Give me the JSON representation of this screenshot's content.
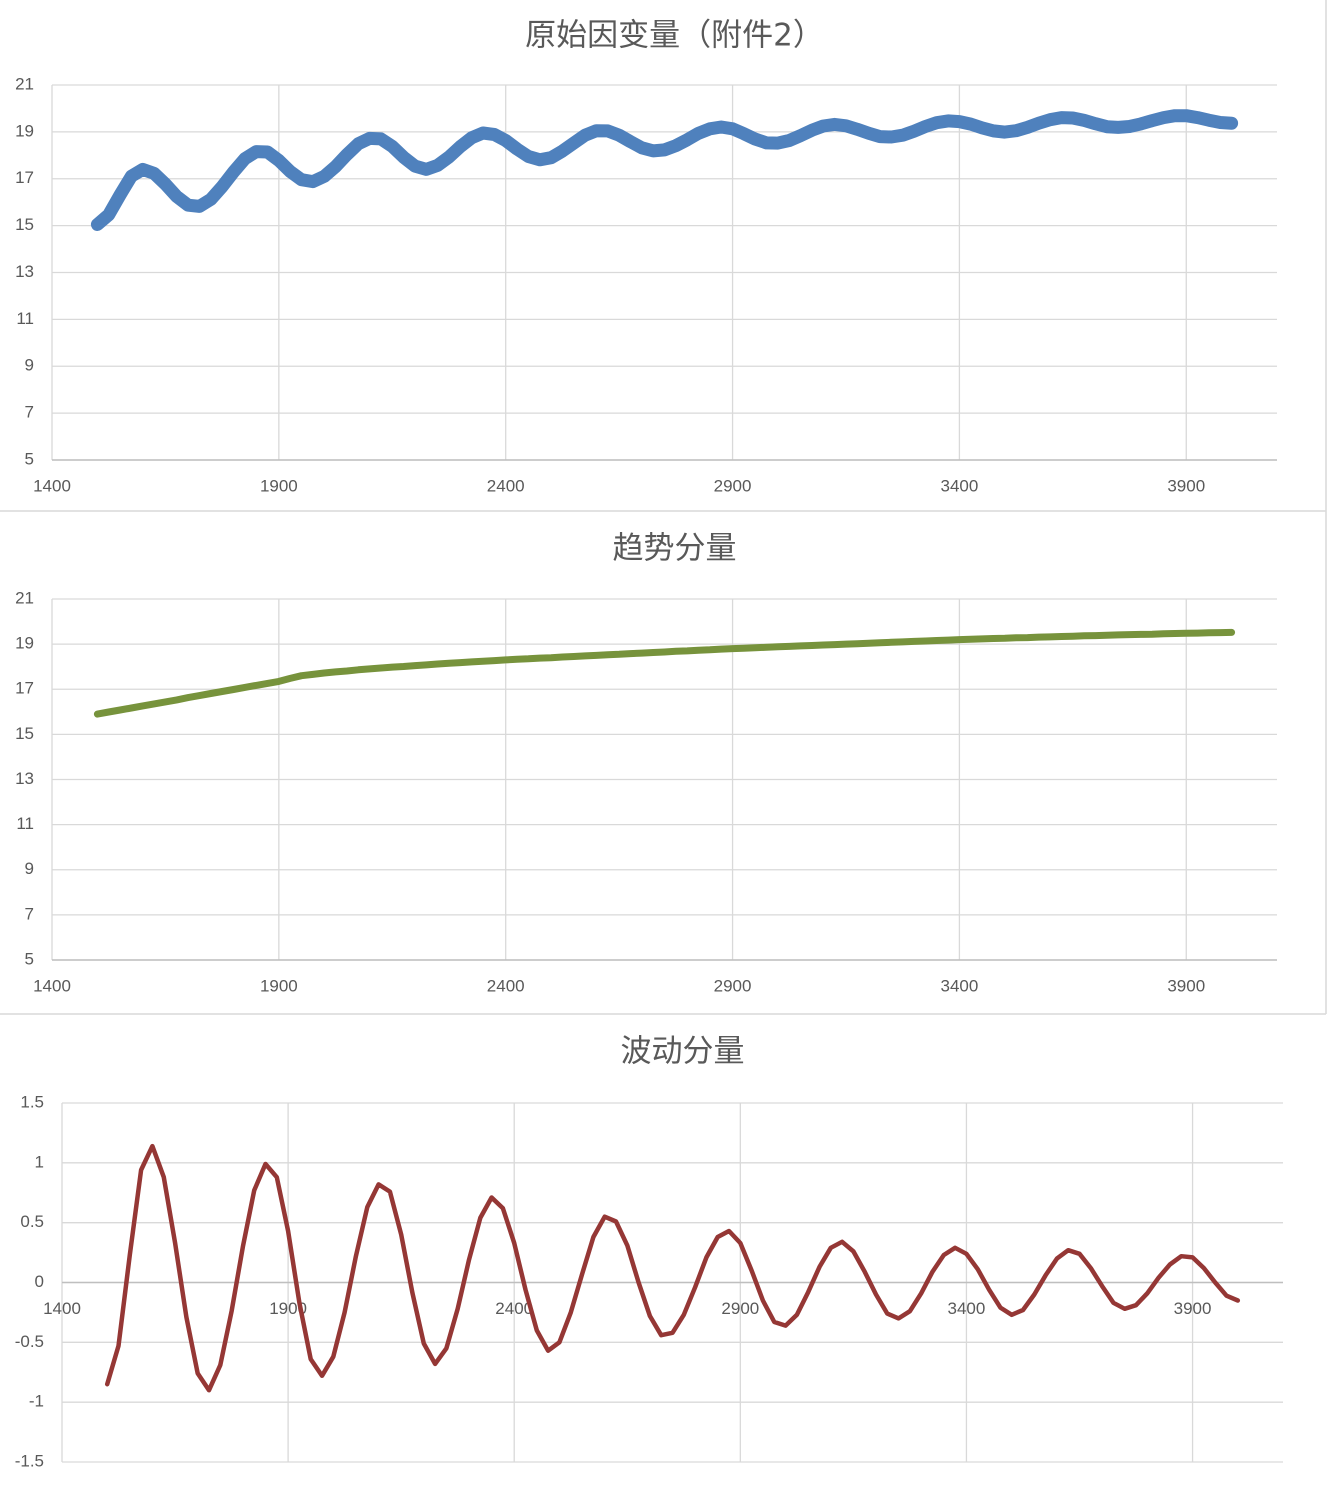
{
  "chart_data": [
    {
      "type": "line",
      "title": "原始因变量（附件2）",
      "color": "#4f81bd",
      "grid": true,
      "xlim": [
        1400,
        4100
      ],
      "xticks": [
        1400,
        1900,
        2400,
        2900,
        3400,
        3900
      ],
      "ylim": [
        5,
        21
      ],
      "yticks": [
        5,
        7,
        9,
        11,
        13,
        15,
        17,
        19,
        21
      ],
      "x": [
        1500,
        1525,
        1550,
        1575,
        1600,
        1625,
        1650,
        1675,
        1700,
        1725,
        1750,
        1775,
        1800,
        1825,
        1850,
        1875,
        1900,
        1925,
        1950,
        1975,
        2000,
        2025,
        2050,
        2075,
        2100,
        2125,
        2150,
        2175,
        2200,
        2225,
        2250,
        2275,
        2300,
        2325,
        2350,
        2375,
        2400,
        2425,
        2450,
        2475,
        2500,
        2525,
        2550,
        2575,
        2600,
        2625,
        2650,
        2675,
        2700,
        2725,
        2750,
        2775,
        2800,
        2825,
        2850,
        2875,
        2900,
        2925,
        2950,
        2975,
        3000,
        3025,
        3050,
        3075,
        3100,
        3125,
        3150,
        3175,
        3200,
        3225,
        3250,
        3275,
        3300,
        3325,
        3350,
        3375,
        3400,
        3425,
        3450,
        3475,
        3500,
        3525,
        3550,
        3575,
        3600,
        3625,
        3650,
        3675,
        3700,
        3725,
        3750,
        3775,
        3800,
        3825,
        3850,
        3875,
        3900,
        3925,
        3950,
        3975,
        4000
      ],
      "values": [
        15.05,
        15.46,
        16.31,
        17.11,
        17.4,
        17.23,
        16.77,
        16.24,
        15.87,
        15.82,
        16.12,
        16.66,
        17.29,
        17.85,
        18.16,
        18.14,
        17.78,
        17.31,
        16.96,
        16.88,
        17.1,
        17.52,
        18.03,
        18.49,
        18.72,
        18.7,
        18.38,
        17.92,
        17.54,
        17.4,
        17.57,
        17.93,
        18.37,
        18.75,
        18.95,
        18.89,
        18.63,
        18.27,
        17.95,
        17.81,
        17.9,
        18.18,
        18.52,
        18.86,
        19.05,
        19.04,
        18.86,
        18.58,
        18.32,
        18.19,
        18.23,
        18.41,
        18.66,
        18.94,
        19.13,
        19.21,
        19.13,
        18.92,
        18.69,
        18.53,
        18.52,
        18.63,
        18.84,
        19.07,
        19.25,
        19.32,
        19.26,
        19.11,
        18.94,
        18.8,
        18.78,
        18.86,
        19.03,
        19.23,
        19.39,
        19.47,
        19.44,
        19.33,
        19.17,
        19.04,
        18.99,
        19.05,
        19.19,
        19.37,
        19.52,
        19.61,
        19.59,
        19.49,
        19.35,
        19.22,
        19.19,
        19.23,
        19.34,
        19.48,
        19.61,
        19.69,
        19.69,
        19.61,
        19.5,
        19.4,
        19.37
      ]
    },
    {
      "type": "line",
      "title": "趋势分量",
      "color": "#77933c",
      "grid": true,
      "xlim": [
        1400,
        4100
      ],
      "xticks": [
        1400,
        1900,
        2400,
        2900,
        3400,
        3900
      ],
      "ylim": [
        5,
        21
      ],
      "yticks": [
        5,
        7,
        9,
        11,
        13,
        15,
        17,
        19,
        21
      ],
      "x": [
        1500,
        1525,
        1550,
        1575,
        1600,
        1625,
        1650,
        1675,
        1700,
        1725,
        1750,
        1775,
        1800,
        1825,
        1850,
        1875,
        1900,
        1925,
        1950,
        1975,
        2000,
        2025,
        2050,
        2075,
        2100,
        2125,
        2150,
        2175,
        2200,
        2225,
        2250,
        2275,
        2300,
        2325,
        2350,
        2375,
        2400,
        2425,
        2450,
        2475,
        2500,
        2525,
        2550,
        2575,
        2600,
        2625,
        2650,
        2675,
        2700,
        2725,
        2750,
        2775,
        2800,
        2825,
        2850,
        2875,
        2900,
        2925,
        2950,
        2975,
        3000,
        3025,
        3050,
        3075,
        3100,
        3125,
        3150,
        3175,
        3200,
        3225,
        3250,
        3275,
        3300,
        3325,
        3350,
        3375,
        3400,
        3425,
        3450,
        3475,
        3500,
        3525,
        3550,
        3575,
        3600,
        3625,
        3650,
        3675,
        3700,
        3725,
        3750,
        3775,
        3800,
        3825,
        3850,
        3875,
        3900,
        3925,
        3950,
        3975,
        4000
      ],
      "values": [
        15.9,
        15.99,
        16.08,
        16.17,
        16.26,
        16.35,
        16.44,
        16.53,
        16.63,
        16.72,
        16.81,
        16.9,
        16.99,
        17.08,
        17.17,
        17.26,
        17.35,
        17.48,
        17.6,
        17.66,
        17.72,
        17.77,
        17.81,
        17.86,
        17.9,
        17.94,
        17.98,
        18.01,
        18.05,
        18.08,
        18.12,
        18.15,
        18.18,
        18.21,
        18.24,
        18.27,
        18.3,
        18.33,
        18.35,
        18.38,
        18.4,
        18.43,
        18.45,
        18.48,
        18.5,
        18.53,
        18.55,
        18.58,
        18.6,
        18.63,
        18.65,
        18.68,
        18.7,
        18.73,
        18.75,
        18.78,
        18.8,
        18.82,
        18.84,
        18.86,
        18.88,
        18.9,
        18.92,
        18.94,
        18.96,
        18.98,
        19.0,
        19.02,
        19.04,
        19.06,
        19.08,
        19.1,
        19.12,
        19.14,
        19.16,
        19.18,
        19.2,
        19.22,
        19.23,
        19.25,
        19.26,
        19.28,
        19.29,
        19.31,
        19.32,
        19.34,
        19.35,
        19.37,
        19.38,
        19.39,
        19.41,
        19.42,
        19.43,
        19.44,
        19.46,
        19.47,
        19.48,
        19.49,
        19.5,
        19.51,
        19.52
      ]
    },
    {
      "type": "line",
      "title": "波动分量",
      "color": "#953735",
      "grid": true,
      "xlim": [
        1400,
        4100
      ],
      "xticks": [
        1400,
        1900,
        2400,
        2900,
        3400,
        3900
      ],
      "ylim": [
        -1.5,
        1.5
      ],
      "yticks": [
        -1.5,
        -1,
        -0.5,
        0,
        0.5,
        1,
        1.5
      ],
      "x": [
        1500,
        1525,
        1550,
        1575,
        1600,
        1625,
        1650,
        1675,
        1700,
        1725,
        1750,
        1775,
        1800,
        1825,
        1850,
        1875,
        1900,
        1925,
        1950,
        1975,
        2000,
        2025,
        2050,
        2075,
        2100,
        2125,
        2150,
        2175,
        2200,
        2225,
        2250,
        2275,
        2300,
        2325,
        2350,
        2375,
        2400,
        2425,
        2450,
        2475,
        2500,
        2525,
        2550,
        2575,
        2600,
        2625,
        2650,
        2675,
        2700,
        2725,
        2750,
        2775,
        2800,
        2825,
        2850,
        2875,
        2900,
        2925,
        2950,
        2975,
        3000,
        3025,
        3050,
        3075,
        3100,
        3125,
        3150,
        3175,
        3200,
        3225,
        3250,
        3275,
        3300,
        3325,
        3350,
        3375,
        3400,
        3425,
        3450,
        3475,
        3500,
        3525,
        3550,
        3575,
        3600,
        3625,
        3650,
        3675,
        3700,
        3725,
        3750,
        3775,
        3800,
        3825,
        3850,
        3875,
        3900,
        3925,
        3950,
        3975,
        4000
      ],
      "values": [
        -0.85,
        -0.53,
        0.23,
        0.94,
        1.14,
        0.88,
        0.33,
        -0.29,
        -0.76,
        -0.9,
        -0.69,
        -0.24,
        0.3,
        0.77,
        0.99,
        0.88,
        0.43,
        -0.17,
        -0.64,
        -0.78,
        -0.62,
        -0.25,
        0.22,
        0.63,
        0.82,
        0.76,
        0.4,
        -0.09,
        -0.51,
        -0.68,
        -0.55,
        -0.22,
        0.19,
        0.54,
        0.71,
        0.62,
        0.33,
        -0.06,
        -0.4,
        -0.57,
        -0.5,
        -0.25,
        0.07,
        0.38,
        0.55,
        0.51,
        0.31,
        0.0,
        -0.28,
        -0.44,
        -0.42,
        -0.27,
        -0.04,
        0.21,
        0.38,
        0.43,
        0.33,
        0.1,
        -0.15,
        -0.33,
        -0.36,
        -0.27,
        -0.08,
        0.13,
        0.29,
        0.34,
        0.26,
        0.09,
        -0.1,
        -0.26,
        -0.3,
        -0.24,
        -0.09,
        0.09,
        0.23,
        0.29,
        0.24,
        0.11,
        -0.06,
        -0.21,
        -0.27,
        -0.23,
        -0.1,
        0.06,
        0.2,
        0.27,
        0.24,
        0.12,
        -0.03,
        -0.17,
        -0.22,
        -0.19,
        -0.09,
        0.04,
        0.15,
        0.22,
        0.21,
        0.12,
        0.0,
        -0.11,
        -0.15
      ]
    }
  ]
}
